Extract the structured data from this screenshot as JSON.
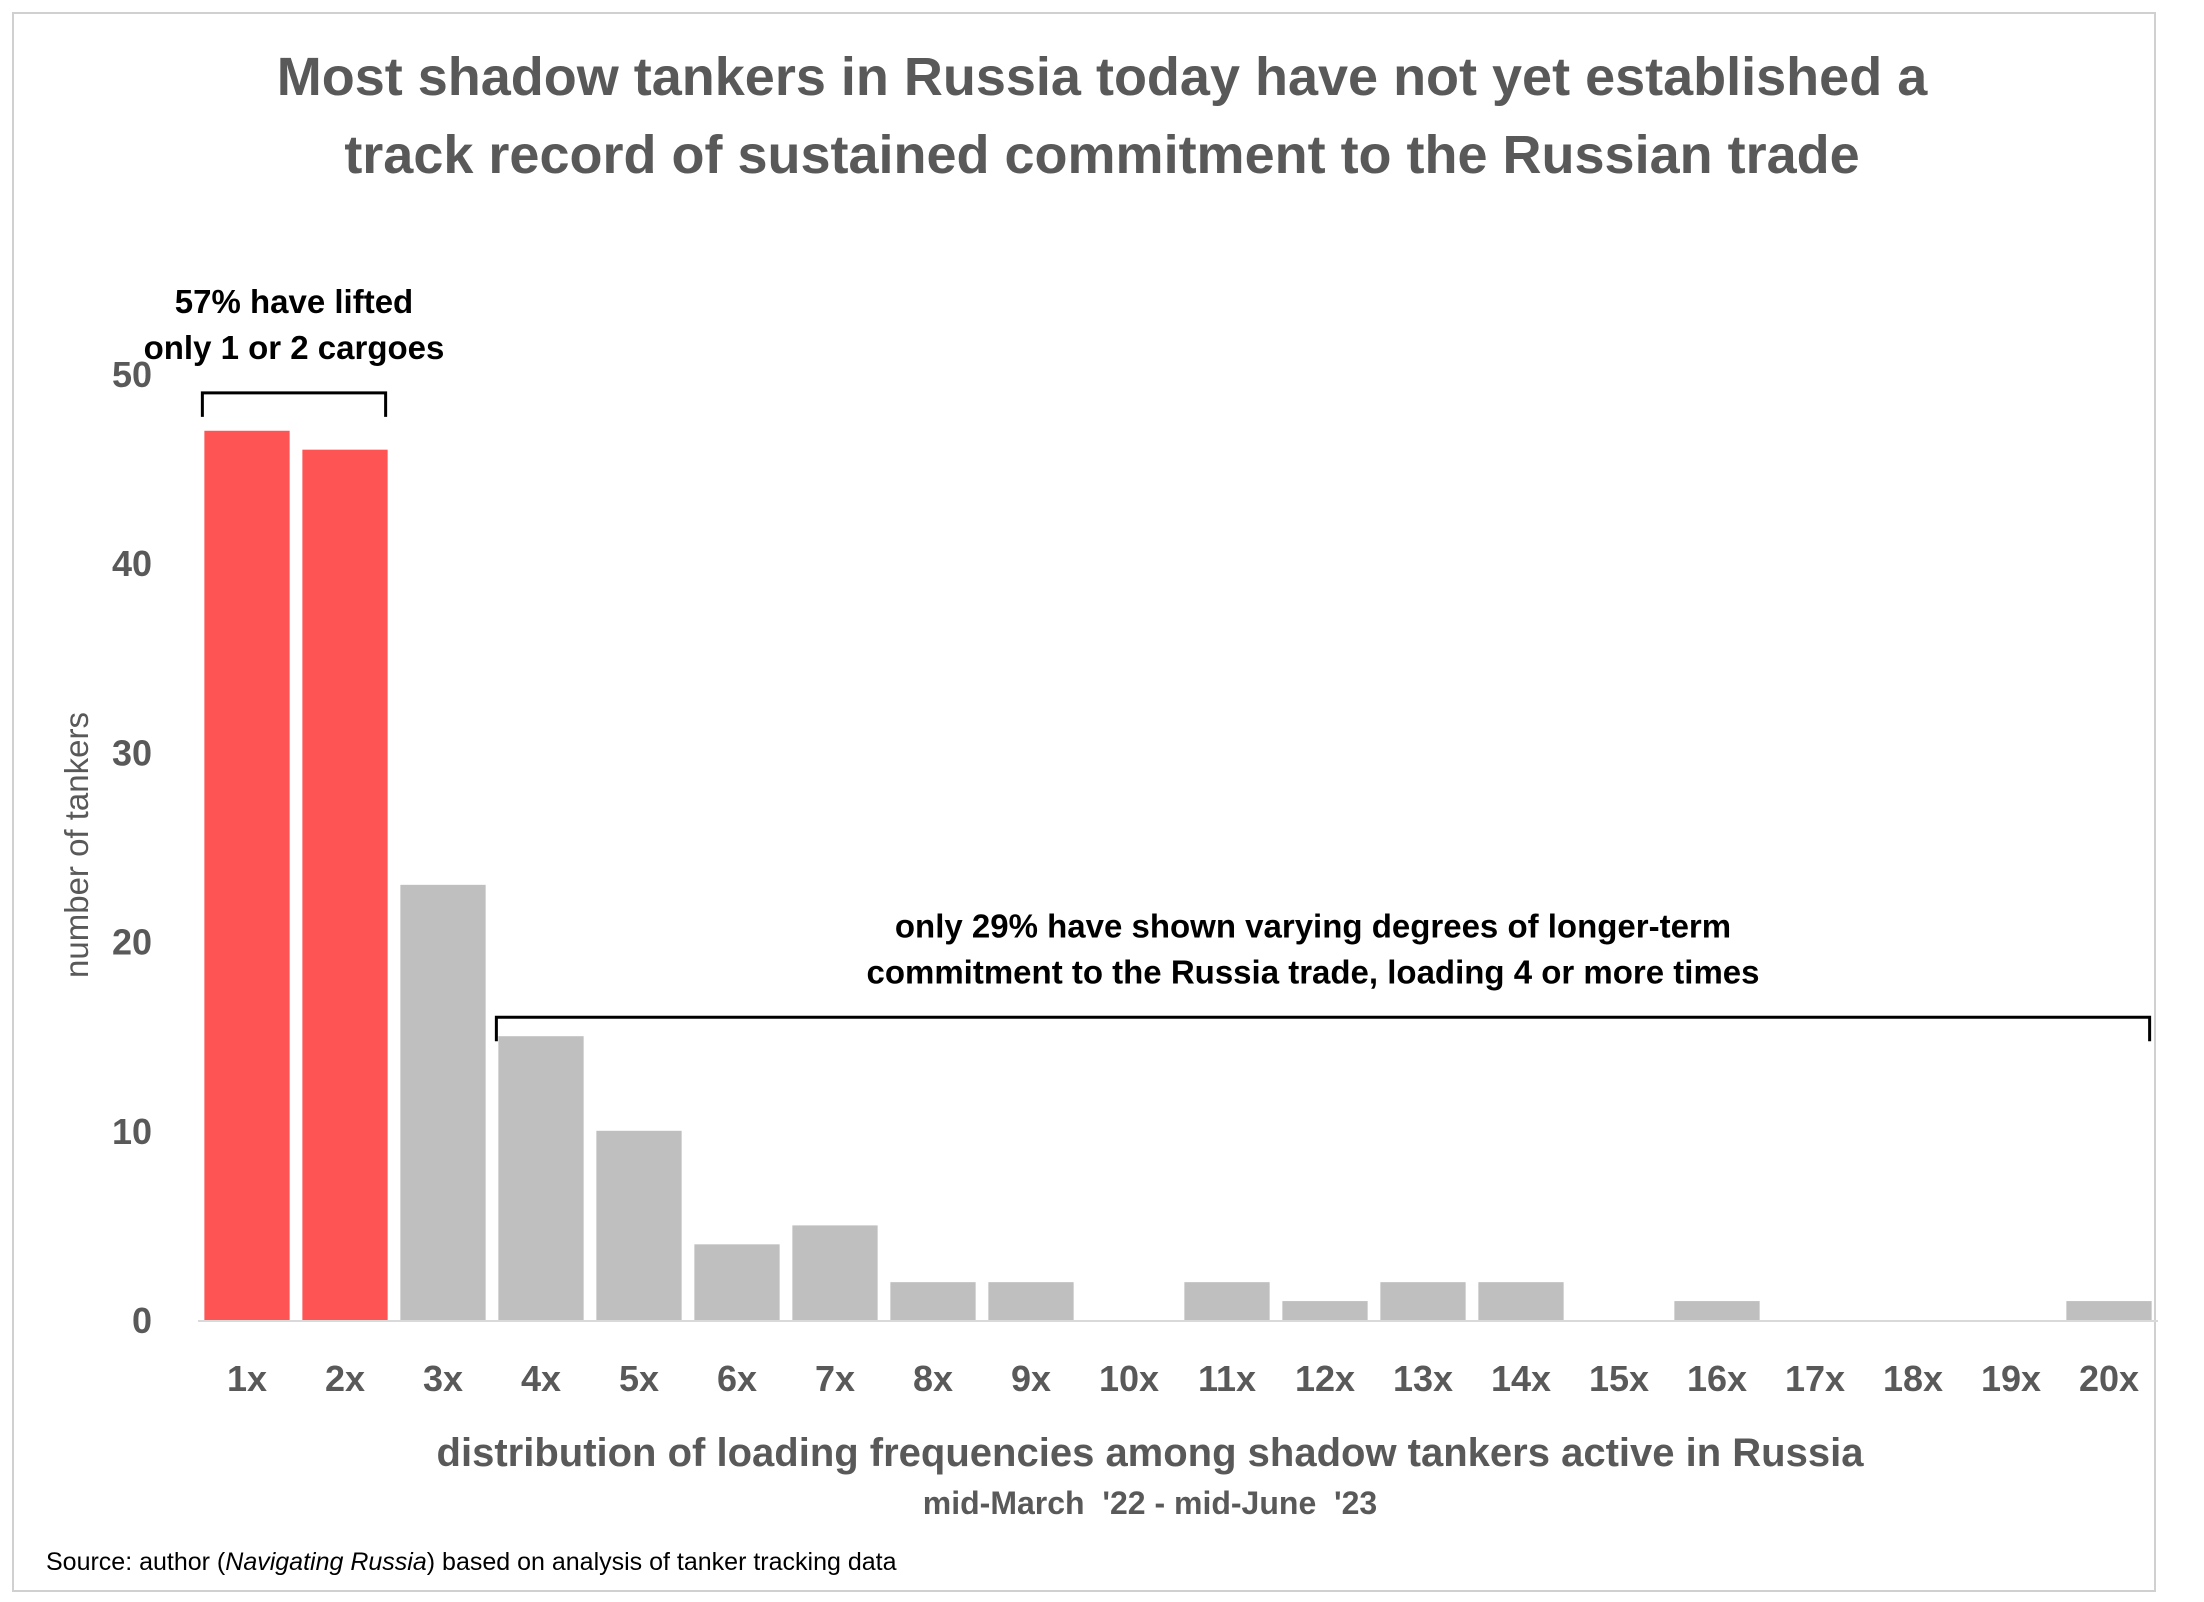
{
  "title": {
    "line1": "Most shadow tankers in Russia today have not yet established a",
    "line2": "track record of sustained commitment to the Russian trade"
  },
  "source": {
    "prefix": "Source: author (",
    "italic": "Navigating Russia",
    "suffix": ")  based on analysis of tanker tracking data"
  },
  "chart_data": {
    "type": "bar",
    "categories": [
      "1x",
      "2x",
      "3x",
      "4x",
      "5x",
      "6x",
      "7x",
      "8x",
      "9x",
      "10x",
      "11x",
      "12x",
      "13x",
      "14x",
      "15x",
      "16x",
      "17x",
      "18x",
      "19x",
      "20x"
    ],
    "values": [
      47,
      46,
      23,
      15,
      10,
      4,
      5,
      2,
      2,
      0,
      2,
      1,
      2,
      2,
      0,
      1,
      0,
      0,
      0,
      1
    ],
    "highlight_categories": [
      "1x",
      "2x"
    ],
    "ylabel": "number of tankers",
    "xlabel": "distribution of loading frequencies among shadow tankers active in Russia",
    "xlabel_sub": "mid-March  '22 - mid-June  '23",
    "ylim": [
      0,
      50
    ],
    "yticks": [
      0,
      10,
      20,
      30,
      40,
      50
    ],
    "grid": false,
    "colors": {
      "highlight": "#fe5454",
      "default": "#bfbfbf"
    },
    "annotations": [
      {
        "text_lines": [
          "57% have lifted",
          "only 1 or 2 cargoes"
        ],
        "from": "1x",
        "to": "2x",
        "y": 49
      },
      {
        "text_lines": [
          "only 29% have shown varying degrees of longer-term",
          "commitment to the Russia trade, loading 4 or more times"
        ],
        "from": "4x",
        "to": "20x",
        "y": 16
      }
    ]
  }
}
